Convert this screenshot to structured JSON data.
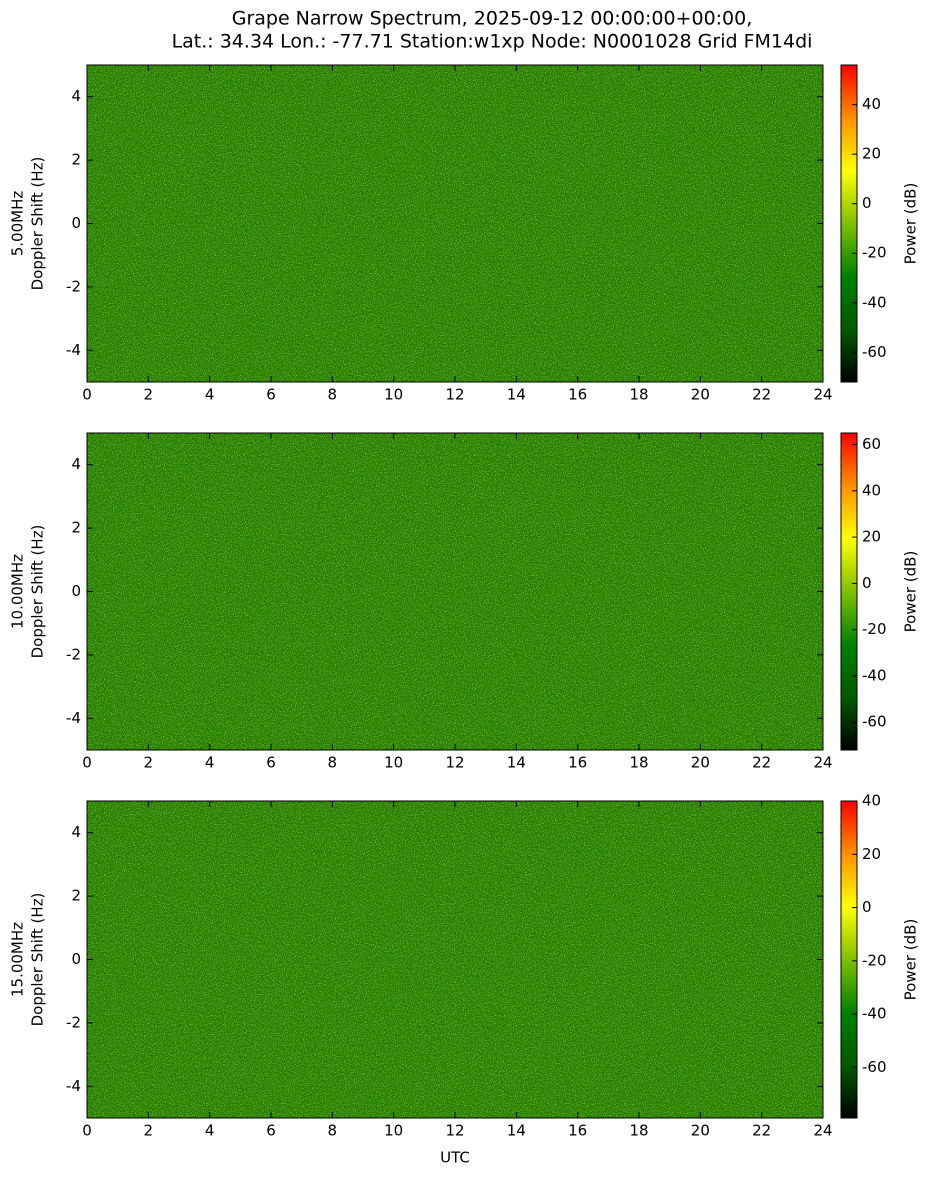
{
  "title": [
    "Grape Narrow Spectrum, 2025-09-12 00:00:00+00:00,",
    "Lat.: 34.34 Lon.: -77.71 Station:w1xp Node: N0001028 Grid FM14di"
  ],
  "chart_data": [
    {
      "type": "heatmap",
      "ylabel": [
        "5.00MHz",
        "Doppler Shift (Hz)"
      ],
      "xlim": [
        0,
        24
      ],
      "xticks": [
        0,
        2,
        4,
        6,
        8,
        10,
        12,
        14,
        16,
        18,
        20,
        22,
        24
      ],
      "ylim": [
        -5,
        5
      ],
      "yticks": [
        -4,
        -2,
        0,
        2,
        4
      ],
      "colorbar": {
        "label": "Power (dB)",
        "lim": [
          -72,
          56
        ],
        "ticks": [
          -60,
          -40,
          -20,
          0,
          20,
          40
        ]
      },
      "colormap": [
        "#000000",
        "#005a00",
        "#008000",
        "#80c000",
        "#ffff00",
        "#ff9000",
        "#ff0000"
      ]
    },
    {
      "type": "heatmap",
      "ylabel": [
        "10.00MHz",
        "Doppler Shift (Hz)"
      ],
      "xlim": [
        0,
        24
      ],
      "xticks": [
        0,
        2,
        4,
        6,
        8,
        10,
        12,
        14,
        16,
        18,
        20,
        22,
        24
      ],
      "ylim": [
        -5,
        5
      ],
      "yticks": [
        -4,
        -2,
        0,
        2,
        4
      ],
      "colorbar": {
        "label": "Power (dB)",
        "lim": [
          -72,
          65
        ],
        "ticks": [
          -60,
          -40,
          -20,
          0,
          20,
          40,
          60
        ]
      },
      "colormap": [
        "#000000",
        "#005a00",
        "#008000",
        "#80c000",
        "#ffff00",
        "#ff9000",
        "#ff0000"
      ]
    },
    {
      "type": "heatmap",
      "ylabel": [
        "15.00MHz",
        "Doppler Shift (Hz)"
      ],
      "xlabel": "UTC",
      "xlim": [
        0,
        24
      ],
      "xticks": [
        0,
        2,
        4,
        6,
        8,
        10,
        12,
        14,
        16,
        18,
        20,
        22,
        24
      ],
      "ylim": [
        -5,
        5
      ],
      "yticks": [
        -4,
        -2,
        0,
        2,
        4
      ],
      "colorbar": {
        "label": "Power (dB)",
        "lim": [
          -79,
          40
        ],
        "ticks": [
          -60,
          -40,
          -20,
          0,
          20,
          40
        ]
      },
      "colormap": [
        "#000000",
        "#005a00",
        "#008000",
        "#80c000",
        "#ffff00",
        "#ff9000",
        "#ff0000"
      ]
    }
  ]
}
